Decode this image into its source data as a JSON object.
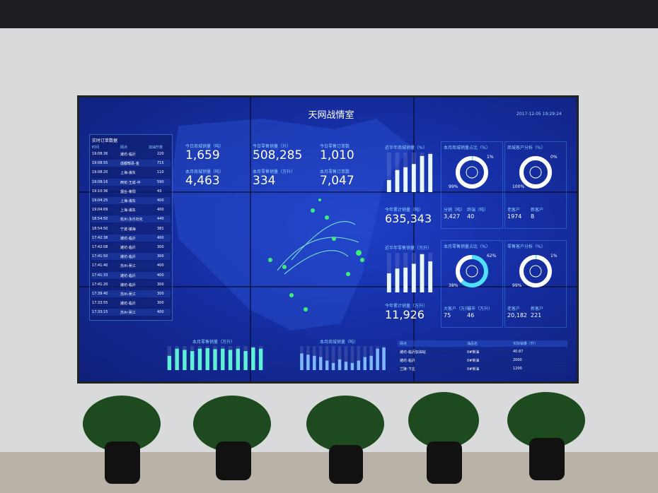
{
  "screen": {
    "title": "天网战情室",
    "datetime": "2017-12-05 19:29:24",
    "realtime": {
      "title": "实时订单数据",
      "headers": [
        "时间",
        "网点",
        "加油升数"
      ],
      "rows": [
        [
          "19:08:36",
          "潍坊-临沂",
          "220"
        ],
        [
          "19:08:55",
          "成都郫县-金",
          "715"
        ],
        [
          "19:08:20",
          "上海-浦东",
          "110"
        ],
        [
          "19:08:16",
          "西安-王成-中",
          "590"
        ],
        [
          "19:10:36",
          "烟台-莱阳",
          "43"
        ],
        [
          "19:04:25",
          "上海-浦东",
          "400"
        ],
        [
          "19:04:09",
          "上海-浦东",
          "400"
        ],
        [
          "18:54:50",
          "杭州-永乐石化",
          "440"
        ],
        [
          "18:54:50",
          "宁波-镇海",
          "381"
        ],
        [
          "17:42:38",
          "潍坊-临沂",
          "400"
        ],
        [
          "17:42:08",
          "潍坊-临沂",
          "300"
        ],
        [
          "17:41:50",
          "潍坊-临沂",
          "300"
        ],
        [
          "17:41:40",
          "苏州-吴江",
          "400"
        ],
        [
          "17:41:33",
          "潍坊-临沂",
          "400"
        ],
        [
          "17:41:20",
          "潍坊-临沂",
          "300"
        ],
        [
          "17:39:40",
          "苏州-吴江",
          "300"
        ],
        [
          "17:33:55",
          "潍坊-临沂",
          "300"
        ],
        [
          "17:33:15",
          "苏州-吴江",
          "400"
        ]
      ]
    },
    "kpis": [
      {
        "label": "今日商城销量（吨）",
        "value": "1,659"
      },
      {
        "label": "本月商城销量（吨）",
        "value": "4,463"
      },
      {
        "label": "今日零售销量（升）",
        "value": "508,285"
      },
      {
        "label": "本月零售销量（万升）",
        "value": "334"
      },
      {
        "label": "今日零售订单数",
        "value": "1,010"
      },
      {
        "label": "本月零售订单数",
        "value": "7,047"
      }
    ],
    "mall_half_year": {
      "title": "近半年商城销量（%）",
      "values": [
        30,
        55,
        62,
        70,
        90,
        95
      ]
    },
    "mall_share": {
      "title": "本月商城销量占比（%）",
      "labels": [
        "1%",
        "99%"
      ],
      "values": [
        1,
        99
      ]
    },
    "mall_customers": {
      "title": "商城客户分析（%）",
      "labels": [
        "0%",
        "100%"
      ],
      "values": [
        0,
        100
      ]
    },
    "mall_year": {
      "label": "今年累计销量（吨）",
      "value": "635,343"
    },
    "mall_stats": [
      {
        "label": "分销（吨）",
        "value": "3,427"
      },
      {
        "label": "终端（吨）",
        "value": "40"
      },
      {
        "label": "老客户",
        "value": "1974"
      },
      {
        "label": "新客户",
        "value": "8"
      }
    ],
    "retail_half_year": {
      "title": "近半年零售销量（万升）",
      "values": [
        40,
        50,
        52,
        60,
        80,
        65
      ]
    },
    "retail_share": {
      "title": "本月零售销量占比（%）",
      "labels": [
        "62%",
        "38%"
      ],
      "values": [
        62,
        38
      ]
    },
    "retail_customers": {
      "title": "零售客户分析（%）",
      "labels": [
        "1%",
        "99%"
      ],
      "values": [
        1,
        99
      ]
    },
    "retail_year": {
      "label": "今年累计销量（万升）",
      "value": "11,926"
    },
    "retail_stats": [
      {
        "label": "大客户（万升）",
        "value": "75"
      },
      {
        "label": "城市（万升）",
        "value": "46"
      },
      {
        "label": "老客户",
        "value": "20,182"
      },
      {
        "label": "新客户",
        "value": "221"
      }
    ],
    "month_retail": {
      "title": "本月零售销量（万升）",
      "values": [
        60,
        90,
        85,
        80,
        90,
        92,
        88,
        90,
        85,
        90,
        80,
        95,
        90
      ]
    },
    "month_mall": {
      "title": "本月商城销量（吨）",
      "values": [
        70,
        65,
        60,
        55,
        40,
        30,
        45,
        35,
        30,
        40,
        55,
        60,
        90,
        95
      ]
    },
    "orders_table": {
      "headers": [
        "网点",
        "油品名",
        "实际销量（升）"
      ],
      "rows": [
        [
          "潍坊-临沂加油站",
          "0#柴油",
          "40.87"
        ],
        [
          "潍坊-临沂",
          "0#柴油",
          "2000"
        ],
        [
          "兰陵-卞庄",
          "0#柴油",
          "1200"
        ]
      ]
    }
  }
}
